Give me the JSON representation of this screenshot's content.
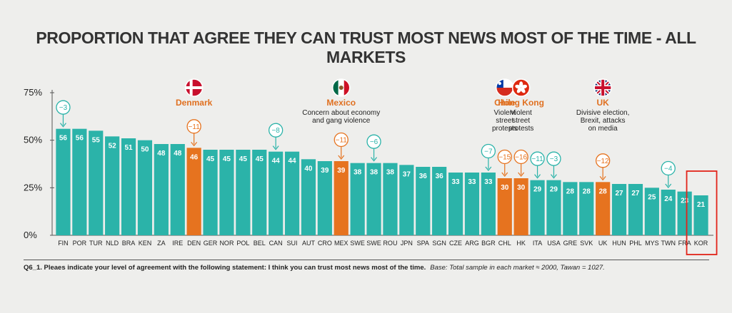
{
  "colors": {
    "teal": "#2bb3a9",
    "orange": "#e6731f",
    "highlight_box": "#e2231a",
    "axis": "#555555"
  },
  "chart_data": {
    "type": "bar",
    "title": "PROPORTION THAT AGREE THEY CAN TRUST MOST NEWS MOST OF THE TIME - ALL MARKETS",
    "ylim": [
      0,
      75
    ],
    "yticks": [
      "0%",
      "25%",
      "50%",
      "75%"
    ],
    "categories": [
      "FIN",
      "POR",
      "TUR",
      "NLD",
      "BRA",
      "KEN",
      "ZA",
      "IRE",
      "DEN",
      "GER",
      "NOR",
      "POL",
      "BEL",
      "CAN",
      "SUI",
      "AUT",
      "CRO",
      "MEX",
      "SWE",
      "SWE",
      "ROU",
      "JPN",
      "SPA",
      "SGN",
      "CZE",
      "ARG",
      "BGR",
      "CHL",
      "HK",
      "ITA",
      "USA",
      "GRE",
      "SVK",
      "UK",
      "HUN",
      "PHL",
      "MYS",
      "TWN",
      "FRA",
      "KOR"
    ],
    "values": [
      56,
      56,
      55,
      52,
      51,
      50,
      48,
      48,
      46,
      45,
      45,
      45,
      45,
      44,
      44,
      40,
      39,
      39,
      38,
      38,
      38,
      37,
      36,
      36,
      33,
      33,
      33,
      30,
      30,
      29,
      29,
      28,
      28,
      28,
      27,
      27,
      25,
      24,
      23,
      21
    ],
    "highlighted": [
      "DEN",
      "MEX",
      "CHL",
      "HK",
      "UK"
    ],
    "changes": [
      {
        "category": "FIN",
        "label": "-3",
        "style": "teal"
      },
      {
        "category": "DEN",
        "label": "-11",
        "style": "orange"
      },
      {
        "category": "CAN",
        "label": "-8",
        "style": "teal"
      },
      {
        "category": "MEX",
        "label": "-11",
        "style": "orange"
      },
      {
        "category": "SWE",
        "label": "-6",
        "style": "teal"
      },
      {
        "category": "BGR",
        "label": "-7",
        "style": "teal"
      },
      {
        "category": "CHL",
        "label": "-15",
        "style": "orange"
      },
      {
        "category": "HK",
        "label": "-16",
        "style": "orange"
      },
      {
        "category": "ITA",
        "label": "-11",
        "style": "teal"
      },
      {
        "category": "USA",
        "label": "-3",
        "style": "teal"
      },
      {
        "category": "UK",
        "label": "-12",
        "style": "orange"
      },
      {
        "category": "TWN",
        "label": "-4",
        "style": "teal"
      }
    ],
    "annotations": [
      {
        "category": "DEN",
        "flag": "denmark",
        "title": "Denmark",
        "desc": []
      },
      {
        "category": "MEX",
        "flag": "mexico",
        "title": "Mexico",
        "desc": [
          "Concern about economy",
          "and gang violence"
        ]
      },
      {
        "category": "CHL",
        "flag": "chile",
        "title": "Chile",
        "desc": [
          "Violent",
          "street",
          "protests"
        ]
      },
      {
        "category": "HK",
        "flag": "hongkong",
        "title": "Hong Kong",
        "desc": [
          "Violent",
          "street",
          "protests"
        ]
      },
      {
        "category": "UK",
        "flag": "uk",
        "title": "UK",
        "desc": [
          "Divisive election,",
          "Brexit, attacks",
          "on media"
        ]
      }
    ],
    "boxed_category": "KOR"
  },
  "footnote": {
    "question": "Q6_1. Pleaes indicate your level of agreement with the following statement: I think you can trust most news most of the time.",
    "base": "Base: Total sample in each market ≈ 2000, Tawan = 1027."
  }
}
